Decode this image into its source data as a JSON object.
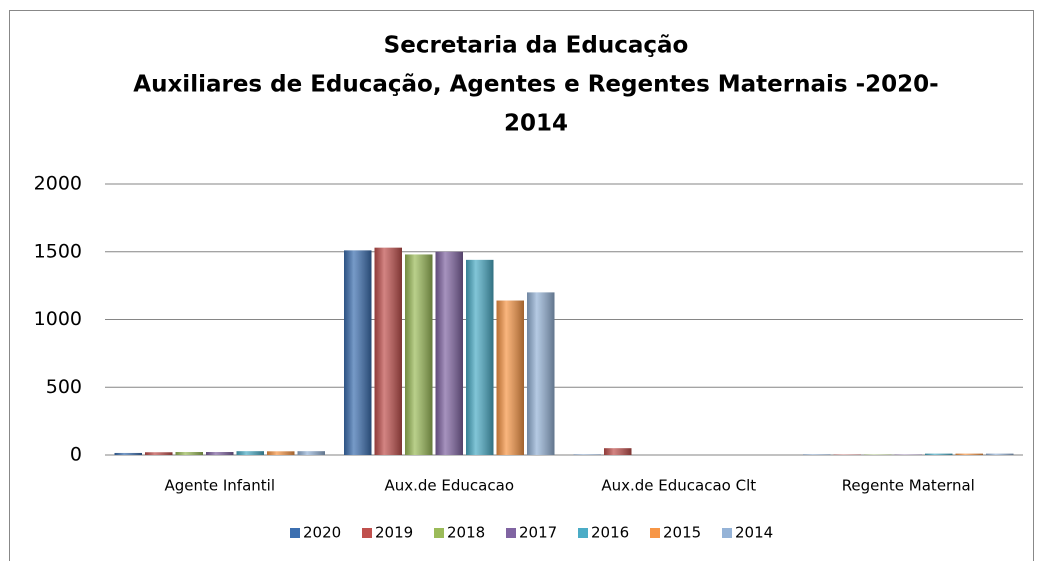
{
  "chart_data": {
    "type": "bar",
    "title": [
      "Secretaria da Educação",
      "Auxiliares de Educação, Agentes e Regentes Maternais -2020-",
      "2014"
    ],
    "categories": [
      "Agente Infantil",
      "Aux.de Educacao",
      "Aux.de Educacao Clt",
      "Regente Maternal"
    ],
    "series": [
      {
        "name": "2020",
        "color": "#3c6fb0",
        "values": [
          15,
          1510,
          3,
          3
        ]
      },
      {
        "name": "2019",
        "color": "#c0504d",
        "values": [
          20,
          1530,
          50,
          3
        ]
      },
      {
        "name": "2018",
        "color": "#9bbb59",
        "values": [
          22,
          1480,
          0,
          3
        ]
      },
      {
        "name": "2017",
        "color": "#8064a2",
        "values": [
          22,
          1500,
          0,
          3
        ]
      },
      {
        "name": "2016",
        "color": "#4bacc6",
        "values": [
          28,
          1440,
          0,
          10
        ]
      },
      {
        "name": "2015",
        "color": "#f79646",
        "values": [
          27,
          1140,
          0,
          10
        ]
      },
      {
        "name": "2014",
        "color": "#95b3d7",
        "values": [
          28,
          1200,
          0,
          10
        ]
      }
    ],
    "ylim": [
      0,
      2000
    ],
    "yticks": [
      0,
      500,
      1000,
      1500,
      2000
    ],
    "grid": true,
    "legend": "bottom"
  }
}
